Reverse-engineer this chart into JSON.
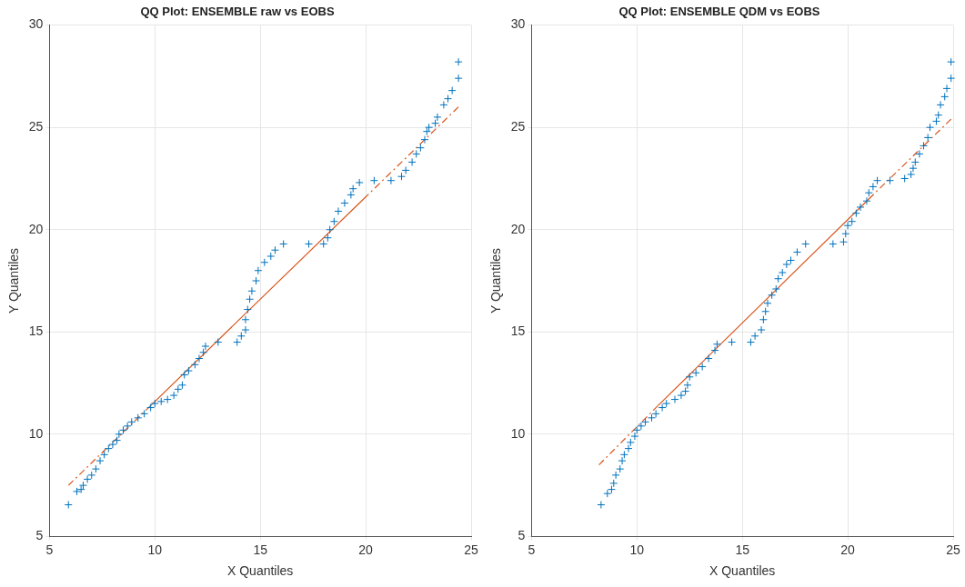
{
  "chart_data": [
    {
      "type": "scatter",
      "title": "QQ Plot: ENSEMBLE raw vs EOBS",
      "xlabel": "X Quantiles",
      "ylabel": "Y Quantiles",
      "xlim": [
        5,
        25
      ],
      "xticks": [
        5,
        10,
        15,
        20,
        25
      ],
      "ylim": [
        5,
        30
      ],
      "yticks": [
        5,
        10,
        15,
        20,
        25,
        30
      ],
      "grid": true,
      "legend": false,
      "marker": "cross",
      "series": [
        {
          "type": "scatter",
          "color": "#0072bd",
          "x": [
            5.9,
            6.3,
            6.5,
            6.6,
            6.8,
            7.0,
            7.2,
            7.4,
            7.6,
            7.8,
            8.0,
            8.2,
            8.3,
            8.5,
            8.7,
            8.9,
            9.2,
            9.5,
            9.8,
            10.0,
            10.3,
            10.6,
            10.9,
            11.1,
            11.3,
            11.4,
            11.6,
            11.9,
            12.1,
            12.3,
            12.4,
            13.0,
            13.9,
            14.1,
            14.3,
            14.3,
            14.4,
            14.5,
            14.6,
            14.8,
            14.9,
            15.2,
            15.5,
            15.7,
            16.1,
            17.3,
            18.0,
            18.2,
            18.3,
            18.5,
            18.7,
            19.0,
            19.3,
            19.4,
            19.7,
            20.4,
            21.2,
            21.7,
            21.9,
            22.2,
            22.4,
            22.6,
            22.8,
            22.9,
            23.0,
            23.3,
            23.4,
            23.7,
            23.9,
            24.1,
            24.4,
            24.4
          ],
          "values": [
            6.55,
            7.2,
            7.3,
            7.5,
            7.8,
            8.0,
            8.3,
            8.7,
            9.0,
            9.3,
            9.5,
            9.7,
            10.0,
            10.2,
            10.4,
            10.6,
            10.8,
            11.0,
            11.3,
            11.5,
            11.6,
            11.7,
            11.9,
            12.2,
            12.4,
            12.9,
            13.1,
            13.4,
            13.7,
            14.0,
            14.3,
            14.5,
            14.5,
            14.8,
            15.1,
            15.6,
            16.1,
            16.6,
            17.0,
            17.5,
            18.0,
            18.4,
            18.7,
            19.0,
            19.3,
            19.3,
            19.3,
            19.6,
            20.0,
            20.4,
            20.9,
            21.3,
            21.7,
            22.0,
            22.3,
            22.4,
            22.4,
            22.6,
            22.9,
            23.3,
            23.7,
            24.0,
            24.4,
            24.8,
            25.0,
            25.2,
            25.5,
            26.1,
            26.4,
            26.8,
            27.4,
            28.2
          ]
        },
        {
          "type": "line",
          "color": "#d95319",
          "marker": "none",
          "line_style": "dashed",
          "x": [
            5.9,
            9.8
          ],
          "values": [
            7.5,
            11.4
          ]
        },
        {
          "type": "line",
          "color": "#d95319",
          "marker": "none",
          "line_style": "solid",
          "x": [
            9.8,
            19.9
          ],
          "values": [
            11.4,
            21.5
          ]
        },
        {
          "type": "line",
          "color": "#d95319",
          "marker": "none",
          "line_style": "dashed",
          "x": [
            19.9,
            24.4
          ],
          "values": [
            21.5,
            26.0
          ]
        }
      ]
    },
    {
      "type": "scatter",
      "title": "QQ Plot: ENSEMBLE QDM vs EOBS",
      "xlabel": "X Quantiles",
      "ylabel": "Y Quantiles",
      "xlim": [
        5,
        25
      ],
      "xticks": [
        5,
        10,
        15,
        20,
        25
      ],
      "ylim": [
        5,
        30
      ],
      "yticks": [
        5,
        10,
        15,
        20,
        25,
        30
      ],
      "grid": true,
      "legend": false,
      "marker": "cross",
      "series": [
        {
          "type": "scatter",
          "color": "#0072bd",
          "x": [
            8.3,
            8.6,
            8.8,
            8.9,
            9.0,
            9.2,
            9.3,
            9.4,
            9.6,
            9.7,
            9.9,
            10.0,
            10.2,
            10.4,
            10.7,
            10.9,
            11.2,
            11.4,
            11.8,
            12.1,
            12.3,
            12.4,
            12.5,
            12.8,
            13.1,
            13.4,
            13.7,
            13.8,
            14.5,
            15.4,
            15.6,
            15.9,
            16.0,
            16.1,
            16.2,
            16.4,
            16.6,
            16.7,
            16.9,
            17.1,
            17.3,
            17.6,
            18.0,
            19.3,
            19.8,
            19.9,
            20.0,
            20.2,
            20.4,
            20.6,
            20.9,
            21.0,
            21.2,
            21.4,
            22.0,
            22.7,
            23.0,
            23.1,
            23.2,
            23.4,
            23.6,
            23.8,
            23.9,
            24.2,
            24.3,
            24.4,
            24.6,
            24.7,
            24.9,
            24.9
          ],
          "values": [
            6.55,
            7.1,
            7.3,
            7.6,
            8.0,
            8.3,
            8.7,
            9.0,
            9.3,
            9.6,
            9.9,
            10.2,
            10.4,
            10.6,
            10.8,
            11.0,
            11.3,
            11.5,
            11.7,
            11.9,
            12.1,
            12.4,
            12.8,
            13.0,
            13.3,
            13.7,
            14.1,
            14.4,
            14.5,
            14.5,
            14.8,
            15.1,
            15.6,
            16.0,
            16.4,
            16.8,
            17.1,
            17.6,
            17.9,
            18.3,
            18.5,
            18.9,
            19.3,
            19.3,
            19.4,
            19.8,
            20.2,
            20.4,
            20.8,
            21.1,
            21.4,
            21.8,
            22.1,
            22.4,
            22.4,
            22.5,
            22.7,
            23.0,
            23.3,
            23.7,
            24.1,
            24.5,
            25.0,
            25.3,
            25.6,
            26.1,
            26.5,
            26.9,
            27.4,
            28.2
          ]
        },
        {
          "type": "line",
          "color": "#d95319",
          "marker": "none",
          "line_style": "dashed",
          "x": [
            8.2,
            11.0
          ],
          "values": [
            8.5,
            11.4
          ]
        },
        {
          "type": "line",
          "color": "#d95319",
          "marker": "none",
          "line_style": "solid",
          "x": [
            11.0,
            21.0
          ],
          "values": [
            11.4,
            21.5
          ]
        },
        {
          "type": "line",
          "color": "#d95319",
          "marker": "none",
          "line_style": "dashed",
          "x": [
            21.0,
            24.9
          ],
          "values": [
            21.5,
            25.4
          ]
        }
      ]
    }
  ]
}
